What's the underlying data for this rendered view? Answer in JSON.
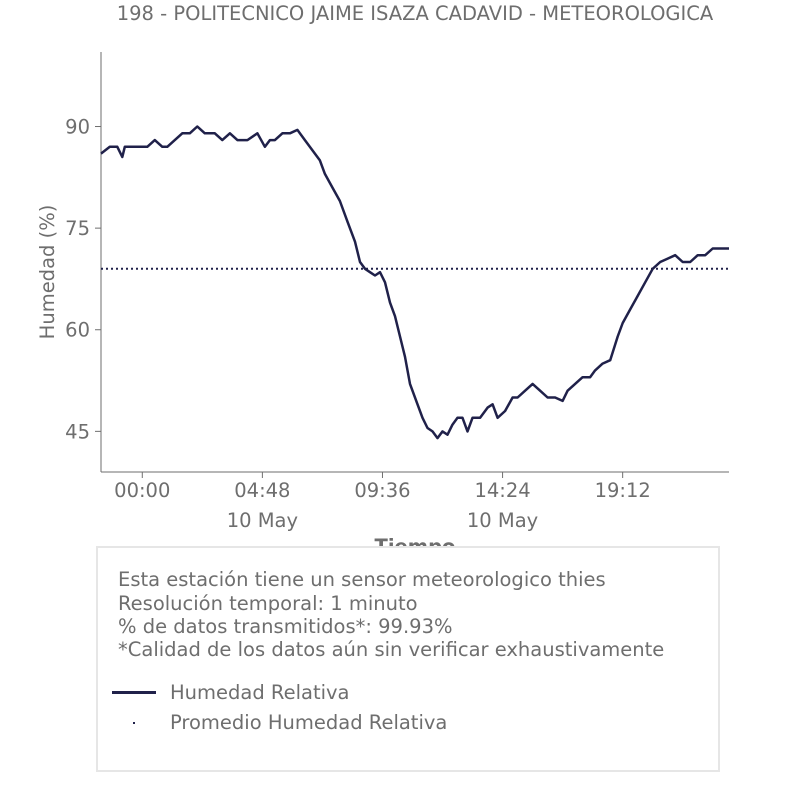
{
  "title": "198 - POLITECNICO JAIME ISAZA CADAVID - METEOROLOGICA",
  "colors": {
    "series": "#20214a",
    "axis": "#6e6e6e",
    "box_border": "#e6e6e6"
  },
  "chart_data": {
    "type": "line",
    "ylabel": "Humedad (%)",
    "xlabel": "Tiempo",
    "yticks": [
      45,
      60,
      75,
      90
    ],
    "ylim": [
      39,
      101
    ],
    "xlim_hours": [
      -1.65,
      23.45
    ],
    "xticks": [
      {
        "hour": 0.0,
        "label": "00:00",
        "sublabel": ""
      },
      {
        "hour": 4.8,
        "label": "04:48",
        "sublabel": "10 May"
      },
      {
        "hour": 9.6,
        "label": "09:36",
        "sublabel": ""
      },
      {
        "hour": 14.4,
        "label": "14:24",
        "sublabel": "10 May"
      },
      {
        "hour": 19.2,
        "label": "19:12",
        "sublabel": ""
      }
    ],
    "grid": false,
    "mean_value": 69,
    "series": [
      {
        "name": "Humedad Relativa",
        "x_hours": [
          -1.65,
          -1.3,
          -1.0,
          -0.8,
          -0.7,
          -0.5,
          -0.2,
          0.2,
          0.5,
          0.8,
          1.0,
          1.3,
          1.6,
          1.9,
          2.2,
          2.5,
          2.9,
          3.2,
          3.5,
          3.8,
          4.2,
          4.6,
          4.9,
          5.1,
          5.3,
          5.6,
          5.9,
          6.2,
          6.5,
          6.9,
          7.1,
          7.3,
          7.6,
          7.9,
          8.2,
          8.5,
          8.7,
          8.9,
          9.1,
          9.3,
          9.5,
          9.7,
          9.9,
          10.1,
          10.3,
          10.5,
          10.7,
          11.0,
          11.2,
          11.4,
          11.6,
          11.8,
          12.0,
          12.2,
          12.4,
          12.6,
          12.8,
          13.0,
          13.2,
          13.5,
          13.8,
          14.0,
          14.2,
          14.5,
          14.8,
          15.0,
          15.3,
          15.6,
          15.9,
          16.2,
          16.5,
          16.8,
          17.0,
          17.3,
          17.6,
          17.9,
          18.1,
          18.4,
          18.7,
          19.0,
          19.2,
          19.5,
          19.8,
          20.1,
          20.4,
          20.7,
          21.0,
          21.3,
          21.6,
          21.9,
          22.2,
          22.5,
          22.8,
          23.1,
          23.45
        ],
        "values": [
          86,
          87,
          87,
          85.5,
          87,
          87,
          87,
          87,
          88,
          87,
          87,
          88,
          89,
          89,
          90,
          89,
          89,
          88,
          89,
          88,
          88,
          89,
          87,
          88,
          88,
          89,
          89,
          89.5,
          88,
          86,
          85,
          83,
          81,
          79,
          76,
          73,
          70,
          69,
          68.5,
          68,
          68.5,
          67,
          64,
          62,
          59,
          56,
          52,
          49,
          47,
          45.5,
          45,
          44,
          45,
          44.5,
          46,
          47,
          47,
          45,
          47,
          47,
          48.5,
          49,
          47,
          48,
          50,
          50,
          51,
          52,
          51,
          50,
          50,
          49.5,
          51,
          52,
          53,
          53,
          54,
          55,
          55.5,
          59,
          61,
          63,
          65,
          67,
          69,
          70,
          70.5,
          71,
          70,
          70,
          71,
          71,
          72,
          72,
          72
        ]
      }
    ]
  },
  "info": {
    "line1": "Esta estación tiene un sensor meteorologico thies",
    "line2": "Resolución temporal: 1 minuto",
    "line3": "% de datos transmitidos*: 99.93%",
    "line4": "*Calidad de los datos aún sin verificar exhaustivamente"
  },
  "legend": {
    "series_label": "Humedad Relativa",
    "mean_label": "Promedio Humedad Relativa"
  }
}
